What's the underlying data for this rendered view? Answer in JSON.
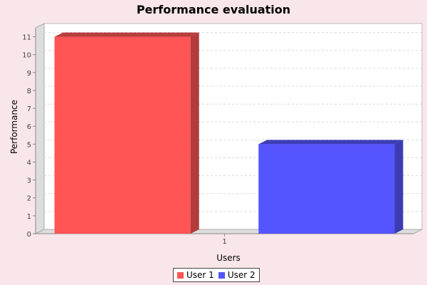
{
  "chart_data": {
    "type": "bar",
    "title": "Performance evaluation",
    "xlabel": "Users",
    "ylabel": "Performance",
    "categories": [
      "1"
    ],
    "series": [
      {
        "name": "User 1",
        "values": [
          11
        ],
        "color": "#ff5555"
      },
      {
        "name": "User 2",
        "values": [
          5
        ],
        "color": "#5555ff"
      }
    ],
    "ylim": [
      0,
      11.5
    ],
    "yticks": [
      0,
      1,
      2,
      3,
      4,
      5,
      6,
      7,
      8,
      9,
      10,
      11
    ],
    "grid": true,
    "legend_position": "bottom-center",
    "three_d": true,
    "background_color": "#f9e6ea",
    "plot_background_color": "#ffffff"
  }
}
